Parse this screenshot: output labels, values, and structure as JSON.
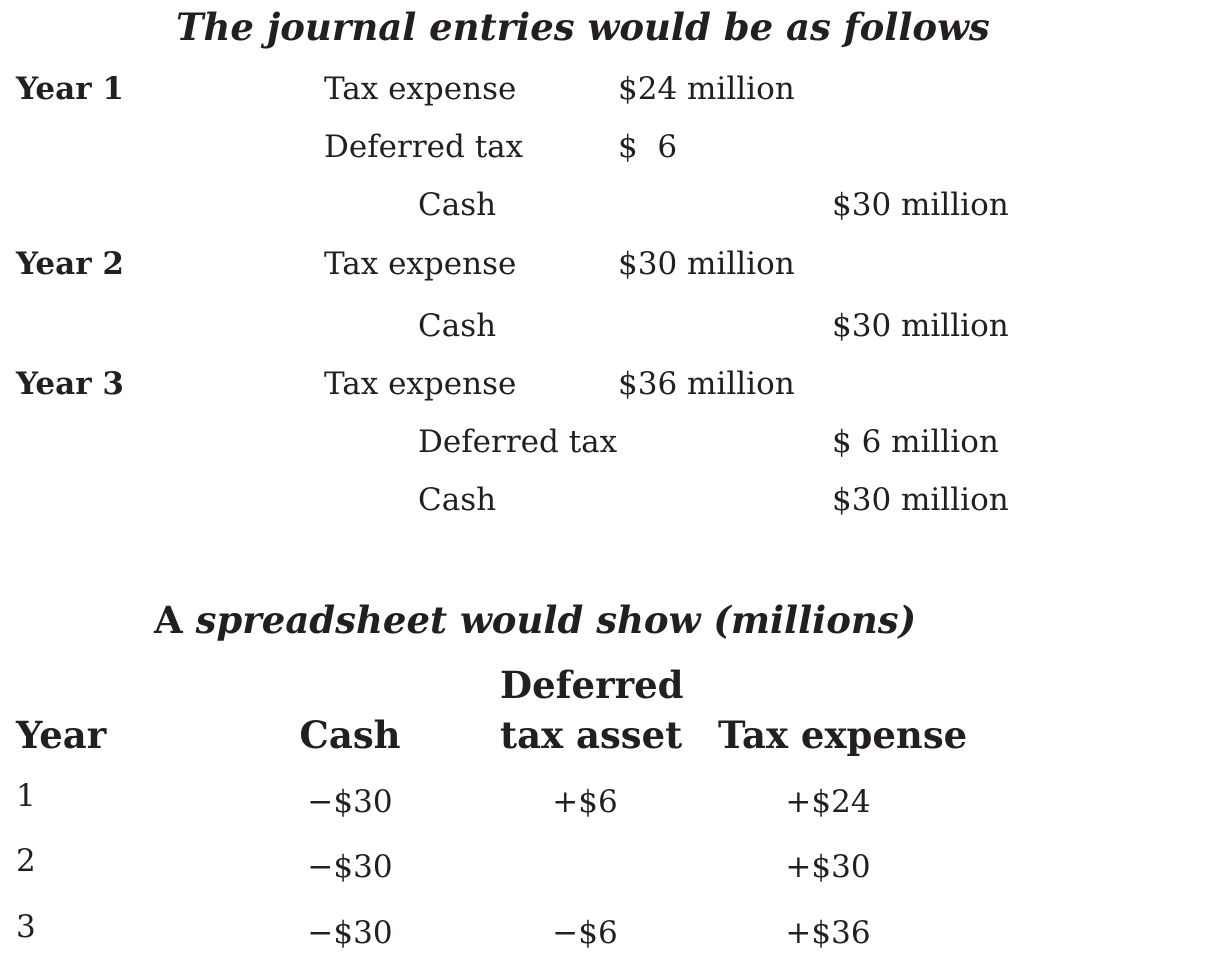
{
  "journal": {
    "title": "The journal entries would be as follows",
    "entries": [
      {
        "year": "Year 1",
        "lines": [
          {
            "account": "Tax expense",
            "debit": "$24 million",
            "credit": ""
          },
          {
            "account": "Deferred tax",
            "debit": "$  6",
            "credit": ""
          },
          {
            "account": "Cash",
            "debit": "",
            "credit": "$30 million"
          }
        ]
      },
      {
        "year": "Year 2",
        "lines": [
          {
            "account": "Tax expense",
            "debit": "$30 million",
            "credit": ""
          },
          {
            "account": "Cash",
            "debit": "",
            "credit": "$30 million"
          }
        ]
      },
      {
        "year": "Year 3",
        "lines": [
          {
            "account": "Tax expense",
            "debit": "$36 million",
            "credit": ""
          },
          {
            "account": "Deferred tax",
            "debit": "",
            "credit": "$ 6 million"
          },
          {
            "account": "Cash",
            "debit": "",
            "credit": "$30 million"
          }
        ]
      }
    ]
  },
  "spreadsheet": {
    "title_prefix": "A ",
    "title_rest": "spreadsheet would show (millions)",
    "headers": {
      "year": "Year",
      "cash": "Cash",
      "deferred_line1": "Deferred",
      "deferred_line2": "tax asset",
      "tax_expense": "Tax expense"
    },
    "rows": [
      {
        "year": "1",
        "cash": "−$30",
        "deferred_tax_asset": "+$6",
        "tax_expense": "+$24"
      },
      {
        "year": "2",
        "cash": "−$30",
        "deferred_tax_asset": "",
        "tax_expense": "+$30"
      },
      {
        "year": "3",
        "cash": "−$30",
        "deferred_tax_asset": "−$6",
        "tax_expense": "+$36"
      }
    ]
  }
}
